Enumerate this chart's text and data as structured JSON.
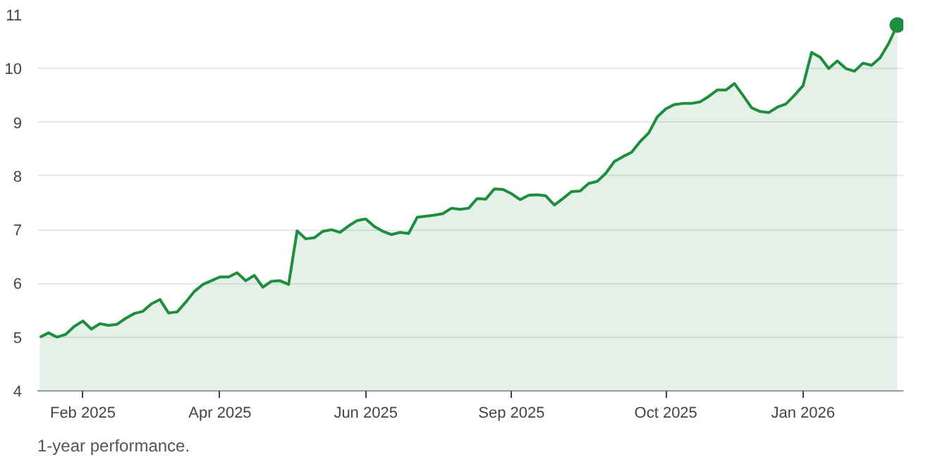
{
  "chart_data": {
    "type": "area",
    "categories": [
      null,
      null,
      null,
      null,
      null,
      "Feb 2025",
      null,
      null,
      null,
      null,
      null,
      null,
      null,
      null,
      null,
      null,
      null,
      null,
      null,
      null,
      null,
      "Apr 2025",
      null,
      null,
      null,
      null,
      null,
      null,
      null,
      null,
      null,
      null,
      null,
      null,
      null,
      null,
      null,
      null,
      "Jun 2025",
      null,
      null,
      null,
      null,
      null,
      null,
      null,
      null,
      null,
      null,
      null,
      null,
      null,
      null,
      null,
      null,
      "Sep 2025",
      null,
      null,
      null,
      null,
      null,
      null,
      null,
      null,
      null,
      null,
      null,
      null,
      null,
      null,
      null,
      null,
      null,
      "Oct 2025",
      null,
      null,
      null,
      null,
      null,
      null,
      null,
      null,
      null,
      null,
      null,
      null,
      null,
      null,
      null,
      "Jan 2026",
      null,
      null,
      null,
      null,
      null,
      null,
      null,
      null,
      null,
      null,
      null
    ],
    "series": [
      {
        "color": "#1e8e3e",
        "values": [
          5.0,
          5.08,
          5.0,
          5.05,
          5.2,
          5.3,
          5.15,
          5.25,
          5.22,
          5.24,
          5.35,
          5.44,
          5.48,
          5.62,
          5.7,
          5.45,
          5.47,
          5.65,
          5.85,
          5.98,
          6.05,
          6.12,
          6.12,
          6.2,
          6.05,
          6.15,
          5.93,
          6.04,
          6.05,
          5.98,
          6.98,
          6.83,
          6.85,
          6.97,
          7.0,
          6.95,
          7.07,
          7.17,
          7.2,
          7.06,
          6.97,
          6.91,
          6.95,
          6.93,
          7.23,
          7.25,
          7.27,
          7.3,
          7.4,
          7.38,
          7.4,
          7.58,
          7.57,
          7.76,
          7.75,
          7.67,
          7.56,
          7.64,
          7.65,
          7.63,
          7.46,
          7.58,
          7.71,
          7.72,
          7.86,
          7.9,
          8.05,
          8.27,
          8.36,
          8.44,
          8.64,
          8.8,
          9.1,
          9.25,
          9.33,
          9.35,
          9.35,
          9.38,
          9.48,
          9.6,
          9.6,
          9.72,
          9.5,
          9.27,
          9.2,
          9.18,
          9.28,
          9.34,
          9.5,
          9.68,
          10.3,
          10.21,
          10.0,
          10.14,
          10.0,
          9.95,
          10.1,
          10.06,
          10.2,
          10.47,
          10.81
        ]
      },
      {
        "type": "scatter",
        "color": "#1e8e3e",
        "marker": "circle",
        "values": [
          null,
          null,
          null,
          null,
          null,
          null,
          null,
          null,
          null,
          null,
          null,
          null,
          null,
          null,
          null,
          null,
          null,
          null,
          null,
          null,
          null,
          null,
          null,
          null,
          null,
          null,
          null,
          null,
          null,
          null,
          null,
          null,
          null,
          null,
          null,
          null,
          null,
          null,
          null,
          null,
          null,
          null,
          null,
          null,
          null,
          null,
          null,
          null,
          null,
          null,
          null,
          null,
          null,
          null,
          null,
          null,
          null,
          null,
          null,
          null,
          null,
          null,
          null,
          null,
          null,
          null,
          null,
          null,
          null,
          null,
          null,
          null,
          null,
          null,
          null,
          null,
          null,
          null,
          null,
          null,
          null,
          null,
          null,
          null,
          null,
          null,
          null,
          null,
          null,
          null,
          null,
          null,
          null,
          null,
          null,
          null,
          null,
          null,
          null,
          null,
          10.81
        ]
      }
    ],
    "ylim": [
      4,
      11
    ],
    "yticks": [
      4,
      5,
      6,
      7,
      8,
      9,
      10,
      11
    ],
    "grid": "y",
    "line_style": "solid",
    "annotations": [
      "1-year performance."
    ]
  }
}
